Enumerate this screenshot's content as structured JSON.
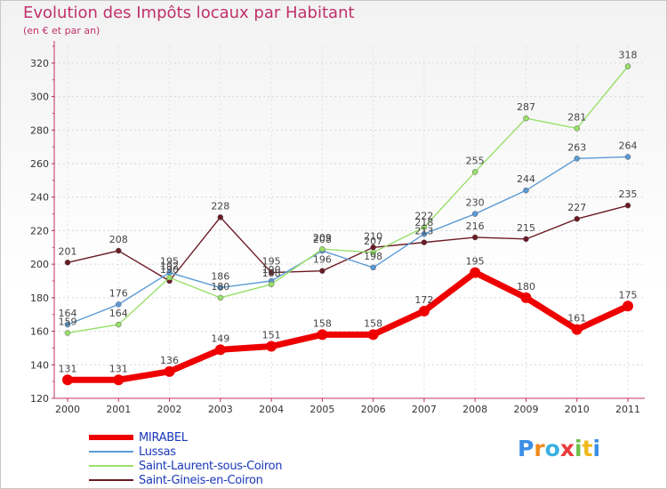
{
  "header": {
    "title": "Evolution des Impôts locaux par Habitant",
    "subtitle": "(en € et par an)"
  },
  "chart_data": {
    "type": "line",
    "title": "Evolution des Impôts locaux par Habitant",
    "subtitle": "(en € et par an)",
    "xlabel": "",
    "ylabel": "",
    "ylim": [
      120,
      330
    ],
    "yticks": [
      120,
      140,
      160,
      180,
      200,
      220,
      240,
      260,
      280,
      300,
      320
    ],
    "categories": [
      "2000",
      "2001",
      "2002",
      "2003",
      "2004",
      "2005",
      "2006",
      "2007",
      "2008",
      "2009",
      "2010",
      "2011"
    ],
    "grid": true,
    "legend_position": "bottom-left",
    "series": [
      {
        "name": "Saint-Gineis-en-Coiron",
        "color": "#6b1a24",
        "values": [
          201,
          208,
          190,
          228,
          195,
          196,
          210,
          213,
          216,
          215,
          227,
          235
        ],
        "labels": [
          "201",
          "208",
          "190",
          "228",
          "195",
          "196",
          "210",
          "213",
          "216",
          "215",
          "227",
          "235"
        ]
      },
      {
        "name": "Lussas",
        "color": "#5b9bd5",
        "values": [
          164,
          176,
          195,
          186,
          190,
          208,
          198,
          218,
          230,
          244,
          263,
          264
        ],
        "labels": [
          "164",
          "176",
          "195",
          "186",
          "190",
          "208",
          "198",
          "218",
          "230",
          "244",
          "263",
          "264"
        ]
      },
      {
        "name": "Saint-Laurent-sous-Coiron",
        "color": "#99e06a",
        "values": [
          159,
          164,
          192,
          180,
          188,
          209,
          207,
          222,
          255,
          287,
          281,
          318
        ],
        "labels": [
          "159",
          "164",
          "192",
          "180",
          "188",
          "209",
          "207",
          "222",
          "255",
          "287",
          "281",
          "318"
        ]
      },
      {
        "name": "MIRABEL",
        "color": "#ee0000",
        "values": [
          131,
          131,
          136,
          149,
          151,
          158,
          158,
          172,
          195,
          180,
          161,
          175
        ],
        "labels": [
          "131",
          "131",
          "136",
          "149",
          "151",
          "158",
          "158",
          "172",
          "195",
          "180",
          "161",
          "175"
        ]
      }
    ]
  },
  "legend": {
    "items": [
      {
        "label": "MIRABEL",
        "color": "#ee0000",
        "label_color": "#1a38b8"
      },
      {
        "label": "Lussas",
        "color": "#5b9bd5",
        "label_color": "#1a38b8"
      },
      {
        "label": "Saint-Laurent-sous-Coiron",
        "color": "#99e06a",
        "label_color": "#1a38b8"
      },
      {
        "label": "Saint-Gineis-en-Coiron",
        "color": "#6b1a24",
        "label_color": "#1a38b8"
      }
    ]
  },
  "logo": {
    "letters": [
      "P",
      "r",
      "o",
      "x",
      "i",
      "t",
      "i"
    ],
    "colors": [
      "#3a8ee6",
      "#f08a1c",
      "#3ab0e0",
      "#e83a3a",
      "#6cc04a",
      "#f0b81c",
      "#3a8ee6"
    ]
  }
}
